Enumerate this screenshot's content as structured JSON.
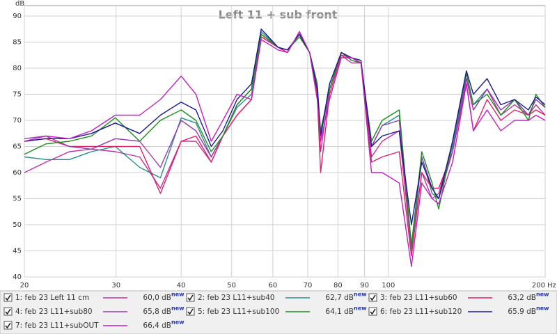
{
  "chart_data": {
    "type": "line",
    "title": "Left 11 + sub front",
    "x_label": "Hz",
    "y_label": "dB",
    "log_x": true,
    "grid": true,
    "xlim": [
      20,
      200
    ],
    "xticks": [
      20,
      30,
      40,
      50,
      60,
      70,
      80,
      90,
      100,
      200
    ],
    "ylim": [
      40,
      92
    ],
    "yticks": [
      40,
      45,
      50,
      55,
      60,
      65,
      70,
      75,
      80,
      85,
      90
    ],
    "x": [
      20,
      22,
      24.4,
      26.9,
      29.9,
      33.3,
      36.5,
      40,
      42.7,
      45.7,
      48.1,
      51.2,
      54.6,
      57,
      61.4,
      64,
      67.5,
      70.6,
      73,
      74.1,
      77.1,
      81.2,
      85,
      88.6,
      92.8,
      97.3,
      104.9,
      110.7,
      115.9,
      121.3,
      124.9,
      132.8,
      141.2,
      145.6,
      154.7,
      164.4,
      174.7,
      185.7,
      192,
      200
    ],
    "series": [
      {
        "name": "1: feb 23 Left 11 cm",
        "color": "#c0309e",
        "level": "60,0 dB",
        "tag": "new",
        "values": [
          60,
          62,
          64,
          64.5,
          64,
          63,
          57,
          66,
          66,
          62,
          67,
          71,
          74,
          86,
          84,
          83,
          87,
          83,
          77,
          64,
          76,
          82.5,
          81,
          81,
          63,
          66,
          68,
          45,
          60,
          55,
          56,
          65,
          78,
          72,
          76,
          71,
          73,
          71,
          73,
          71
        ]
      },
      {
        "name": "2: feb 23 L11+sub40",
        "color": "#2a8c8c",
        "level": "62,7 dB",
        "tag": "new",
        "values": [
          63,
          62.5,
          62.5,
          64,
          65,
          61,
          59,
          70.5,
          69.5,
          63,
          67,
          72.5,
          75,
          87,
          84,
          83.5,
          86.5,
          83,
          77,
          67,
          76,
          82.5,
          82,
          81,
          65,
          69,
          71,
          45,
          63,
          56,
          55,
          65,
          79,
          73,
          76,
          72,
          74,
          71,
          74,
          72.5
        ]
      },
      {
        "name": "3: feb 23 L11+sub60",
        "color": "#e0206a",
        "level": "63,2 dB",
        "tag": "new",
        "values": [
          66,
          66.5,
          65,
          65,
          65,
          65,
          56,
          66,
          67,
          62,
          67,
          71,
          74,
          86,
          84,
          83,
          87,
          83,
          75,
          60,
          75,
          82.5,
          82,
          81,
          62,
          63,
          64,
          44,
          60,
          57,
          57,
          64,
          77,
          68,
          74,
          70,
          72,
          71,
          72,
          71
        ]
      },
      {
        "name": "4: feb 23 L11+sub80",
        "color": "#9a3ab0",
        "level": "65,8 dB",
        "tag": "new",
        "values": [
          66.5,
          67,
          65,
          64.5,
          66.5,
          66,
          61,
          70,
          68,
          63,
          67,
          73,
          76,
          86.5,
          84,
          83.5,
          86.5,
          83,
          77,
          67,
          76,
          83,
          82,
          81,
          65,
          69,
          70,
          46,
          63,
          57,
          55,
          64,
          78,
          72,
          76,
          72,
          74,
          71,
          74,
          72.5
        ]
      },
      {
        "name": "5: feb 23 L11+sub100",
        "color": "#1e8c1e",
        "level": "64,1 dB",
        "tag": "new",
        "values": [
          63.5,
          65.5,
          66,
          67,
          70.5,
          66,
          70,
          72,
          70,
          64,
          67,
          73,
          76,
          86.5,
          84,
          83.5,
          86,
          83,
          77,
          68,
          76,
          83,
          81.5,
          81,
          66,
          70,
          72,
          46,
          64,
          58,
          53,
          66,
          79,
          73,
          75,
          71,
          74,
          70,
          75,
          72.5
        ]
      },
      {
        "name": "6: feb 23 L11+sub120",
        "color": "#1a1a8c",
        "level": "65.9 dB",
        "tag": "new",
        "values": [
          66,
          66.5,
          66.5,
          67.5,
          69.5,
          67.5,
          71,
          73.5,
          72,
          65,
          68,
          74,
          77,
          87.5,
          84,
          83.5,
          86.5,
          83,
          76,
          67,
          77,
          83,
          82,
          81.5,
          65,
          67,
          68,
          50,
          62,
          57,
          55,
          66,
          79.5,
          75,
          78,
          73,
          74,
          72,
          74.5,
          73
        ]
      },
      {
        "name": "7: feb 23 L11+subOUT",
        "color": "#c020c0",
        "level": "66,4 dB",
        "tag": "new",
        "values": [
          66,
          67,
          66.5,
          68,
          71,
          71,
          74,
          78.5,
          75,
          66,
          70,
          75,
          74,
          85.5,
          83.5,
          83,
          87,
          83,
          74,
          66,
          74,
          82,
          82,
          81,
          60,
          60,
          58,
          42,
          58,
          55,
          54,
          62,
          77,
          68,
          72,
          68,
          70,
          70,
          71,
          70
        ]
      }
    ]
  }
}
